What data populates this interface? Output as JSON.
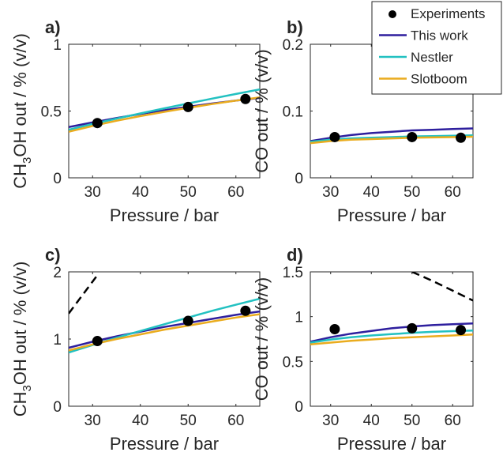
{
  "colors": {
    "experiments": "#000000",
    "this_work": "#2e1f9e",
    "nestler": "#22c1c1",
    "slotboom": "#eaac1e",
    "extra_dashed": "#000000",
    "axis": "#262626"
  },
  "legend": {
    "placement": "top-right",
    "entries": [
      "Experiments",
      "This work",
      "Nestler",
      "Slotboom"
    ]
  },
  "chart_data": [
    {
      "panel": "a)",
      "type": "line",
      "xlabel": "Pressure / bar",
      "ylabel_parts": [
        "CH",
        "3",
        "OH out / % (v/v)"
      ],
      "xlim": [
        25,
        65
      ],
      "ylim": [
        0,
        1
      ],
      "xticks": [
        30,
        40,
        50,
        60
      ],
      "yticks": [
        0,
        0.5,
        1
      ],
      "ytick_labels": [
        "0",
        "0.5",
        "1"
      ],
      "series": [
        {
          "name": "Experiments",
          "kind": "markers",
          "x": [
            31,
            50,
            62
          ],
          "y": [
            0.41,
            0.53,
            0.59
          ]
        },
        {
          "name": "This work",
          "kind": "line",
          "x": [
            25,
            30,
            35,
            40,
            45,
            50,
            55,
            60,
            65
          ],
          "y": [
            0.38,
            0.415,
            0.448,
            0.478,
            0.506,
            0.532,
            0.556,
            0.578,
            0.598
          ]
        },
        {
          "name": "Nestler",
          "kind": "line",
          "x": [
            25,
            30,
            35,
            40,
            45,
            50,
            55,
            60,
            65
          ],
          "y": [
            0.36,
            0.403,
            0.443,
            0.482,
            0.52,
            0.557,
            0.593,
            0.628,
            0.662
          ]
        },
        {
          "name": "Slotboom",
          "kind": "line",
          "x": [
            25,
            30,
            35,
            40,
            45,
            50,
            55,
            60,
            65
          ],
          "y": [
            0.345,
            0.388,
            0.427,
            0.462,
            0.494,
            0.524,
            0.552,
            0.578,
            0.602
          ]
        }
      ]
    },
    {
      "panel": "b)",
      "type": "line",
      "xlabel": "Pressure / bar",
      "ylabel_parts": [
        "CO out / % (v/v)"
      ],
      "xlim": [
        25,
        65
      ],
      "ylim": [
        0,
        0.2
      ],
      "xticks": [
        30,
        40,
        50,
        60
      ],
      "yticks": [
        0,
        0.1,
        0.2
      ],
      "ytick_labels": [
        "0",
        "0.1",
        "0.2"
      ],
      "series": [
        {
          "name": "Experiments",
          "kind": "markers",
          "x": [
            31,
            50,
            62
          ],
          "y": [
            0.061,
            0.061,
            0.06
          ]
        },
        {
          "name": "This work",
          "kind": "line",
          "x": [
            25,
            30,
            35,
            40,
            45,
            50,
            55,
            60,
            65
          ],
          "y": [
            0.055,
            0.06,
            0.064,
            0.067,
            0.069,
            0.071,
            0.072,
            0.073,
            0.074
          ]
        },
        {
          "name": "Nestler",
          "kind": "line",
          "x": [
            25,
            30,
            35,
            40,
            45,
            50,
            55,
            60,
            65
          ],
          "y": [
            0.054,
            0.057,
            0.059,
            0.06,
            0.061,
            0.062,
            0.0625,
            0.063,
            0.0635
          ]
        },
        {
          "name": "Slotboom",
          "kind": "line",
          "x": [
            25,
            30,
            35,
            40,
            45,
            50,
            55,
            60,
            65
          ],
          "y": [
            0.052,
            0.055,
            0.057,
            0.058,
            0.059,
            0.06,
            0.0605,
            0.061,
            0.0615
          ]
        }
      ]
    },
    {
      "panel": "c)",
      "type": "line",
      "xlabel": "Pressure / bar",
      "ylabel_parts": [
        "CH",
        "3",
        "OH out / % (v/v)"
      ],
      "xlim": [
        25,
        65
      ],
      "ylim": [
        0,
        2
      ],
      "xticks": [
        30,
        40,
        50,
        60
      ],
      "yticks": [
        0,
        1,
        2
      ],
      "ytick_labels": [
        "0",
        "1",
        "2"
      ],
      "series": [
        {
          "name": "Experiments",
          "kind": "markers",
          "x": [
            31,
            50,
            62
          ],
          "y": [
            0.97,
            1.27,
            1.42
          ]
        },
        {
          "name": "This work",
          "kind": "line",
          "x": [
            25,
            30,
            35,
            40,
            45,
            50,
            55,
            60,
            65
          ],
          "y": [
            0.87,
            0.96,
            1.04,
            1.11,
            1.18,
            1.24,
            1.3,
            1.36,
            1.41
          ]
        },
        {
          "name": "Nestler",
          "kind": "line",
          "x": [
            25,
            30,
            35,
            40,
            45,
            50,
            55,
            60,
            65
          ],
          "y": [
            0.8,
            0.91,
            1.02,
            1.12,
            1.22,
            1.32,
            1.42,
            1.51,
            1.6
          ]
        },
        {
          "name": "Slotboom",
          "kind": "line",
          "x": [
            25,
            30,
            35,
            40,
            45,
            50,
            55,
            60,
            65
          ],
          "y": [
            0.83,
            0.92,
            1.0,
            1.07,
            1.14,
            1.2,
            1.26,
            1.32,
            1.37
          ]
        },
        {
          "name": "",
          "kind": "dashed",
          "x": [
            25,
            27,
            29,
            31
          ],
          "y": [
            1.38,
            1.57,
            1.76,
            1.95
          ]
        }
      ]
    },
    {
      "panel": "d)",
      "type": "line",
      "xlabel": "Pressure / bar",
      "ylabel_parts": [
        "CO out / % (v/v)"
      ],
      "xlim": [
        25,
        65
      ],
      "ylim": [
        0,
        1.5
      ],
      "xticks": [
        30,
        40,
        50,
        60
      ],
      "yticks": [
        0,
        0.5,
        1,
        1.5
      ],
      "ytick_labels": [
        "0",
        "0.5",
        "1",
        "1.5"
      ],
      "series": [
        {
          "name": "Experiments",
          "kind": "markers",
          "x": [
            31,
            50,
            62
          ],
          "y": [
            0.86,
            0.87,
            0.85
          ]
        },
        {
          "name": "This work",
          "kind": "line",
          "x": [
            25,
            30,
            35,
            40,
            45,
            50,
            55,
            60,
            65
          ],
          "y": [
            0.72,
            0.77,
            0.81,
            0.84,
            0.87,
            0.89,
            0.905,
            0.915,
            0.925
          ]
        },
        {
          "name": "Nestler",
          "kind": "line",
          "x": [
            25,
            30,
            35,
            40,
            45,
            50,
            55,
            60,
            65
          ],
          "y": [
            0.71,
            0.745,
            0.77,
            0.79,
            0.805,
            0.82,
            0.83,
            0.838,
            0.845
          ]
        },
        {
          "name": "Slotboom",
          "kind": "line",
          "x": [
            25,
            30,
            35,
            40,
            45,
            50,
            55,
            60,
            65
          ],
          "y": [
            0.69,
            0.71,
            0.73,
            0.745,
            0.76,
            0.77,
            0.78,
            0.79,
            0.8
          ]
        },
        {
          "name": "",
          "kind": "dashed",
          "x": [
            50,
            55,
            60,
            65
          ],
          "y": [
            1.5,
            1.4,
            1.29,
            1.18
          ]
        }
      ]
    }
  ]
}
